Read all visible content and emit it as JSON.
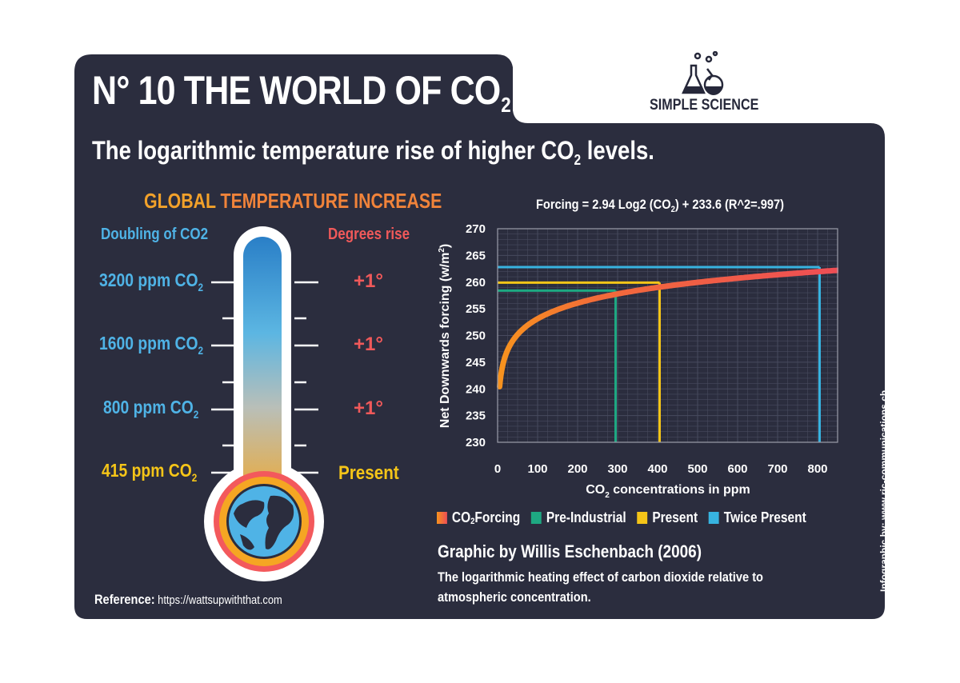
{
  "header": {
    "title_main": "N° 10  THE WORLD OF CO",
    "title_sub": "2",
    "subtitle_pre": "The logarithmic temperature rise of higher CO",
    "subtitle_sub": "2",
    "subtitle_post": " levels.",
    "brand": "SIMPLE SCIENCE"
  },
  "thermometer": {
    "title_part1": "GLOBAL ",
    "title_part2": "TEMPERATURE INCREASE",
    "left_header": "Doubling of CO2",
    "right_header": "Degrees rise",
    "levels": [
      {
        "ppm": "3200 ppm CO",
        "sub": "2",
        "rise": "+1°"
      },
      {
        "ppm": "1600 ppm CO",
        "sub": "2",
        "rise": "+1°"
      },
      {
        "ppm": "800 ppm CO",
        "sub": "2",
        "rise": "+1°"
      },
      {
        "ppm": "415 ppm CO",
        "sub": "2",
        "rise": "Present"
      }
    ]
  },
  "reference": {
    "label": "Reference:",
    "url": " https://wattsupwiththat.com"
  },
  "chart": {
    "formula_pre": "Forcing = 2.94 Log2 (CO",
    "formula_sub": "2",
    "formula_post": ") + 233.6 (R^2=.997)",
    "legend": [
      {
        "pre": "CO",
        "sub": "2",
        "post": " Forcing"
      },
      {
        "pre": "Pre-Industrial",
        "sub": "",
        "post": ""
      },
      {
        "pre": "Present",
        "sub": "",
        "post": ""
      },
      {
        "pre": "Twice Present",
        "sub": "",
        "post": ""
      }
    ],
    "credit": "Graphic by Willis Eschenbach (2006)",
    "caption": "The logarithmic heating effect of carbon dioxide relative to atmospheric concentration."
  },
  "side_credit": "Infographic by: www.ric-communications.ch",
  "colors": {
    "card": "#2b2d3e",
    "orange": "#f2a12a",
    "blue_text": "#4fb3e6",
    "red_text": "#f0595a",
    "yellow_text": "#f5c518",
    "curve_red": "#ee4e55",
    "curve_orange": "#f7931e",
    "green": "#1ea882",
    "yellow": "#f5c518",
    "cyan": "#37b3e0"
  },
  "chart_data": {
    "type": "line",
    "title": "Forcing = 2.94 Log2 (CO2) + 233.6 (R^2=.997)",
    "xlabel": "CO2 concentrations in ppm",
    "ylabel": "Net Downwards forcing (w/m2)",
    "xlim": [
      0,
      850
    ],
    "ylim": [
      230,
      270
    ],
    "x_ticks": [
      0,
      100,
      200,
      300,
      400,
      500,
      600,
      700,
      800
    ],
    "y_ticks": [
      230,
      235,
      240,
      245,
      250,
      255,
      260,
      265,
      270
    ],
    "grid": true,
    "series": [
      {
        "name": "CO2 Forcing",
        "formula": "2.94*log2(x)+233.6",
        "x": [
          5,
          10,
          25,
          50,
          100,
          150,
          200,
          280,
          300,
          400,
          500,
          600,
          700,
          800,
          850
        ],
        "values": [
          240.4,
          243.4,
          247.3,
          250.2,
          253.1,
          254.9,
          256.1,
          257.5,
          257.8,
          259.0,
          260.0,
          260.7,
          261.4,
          262.0,
          262.2
        ]
      },
      {
        "name": "Pre-Industrial",
        "x": 295,
        "y": 258.4
      },
      {
        "name": "Present",
        "x": 405,
        "y": 259.9
      },
      {
        "name": "Twice Present",
        "x": 805,
        "y": 262.8
      }
    ],
    "legend_position": "bottom"
  }
}
